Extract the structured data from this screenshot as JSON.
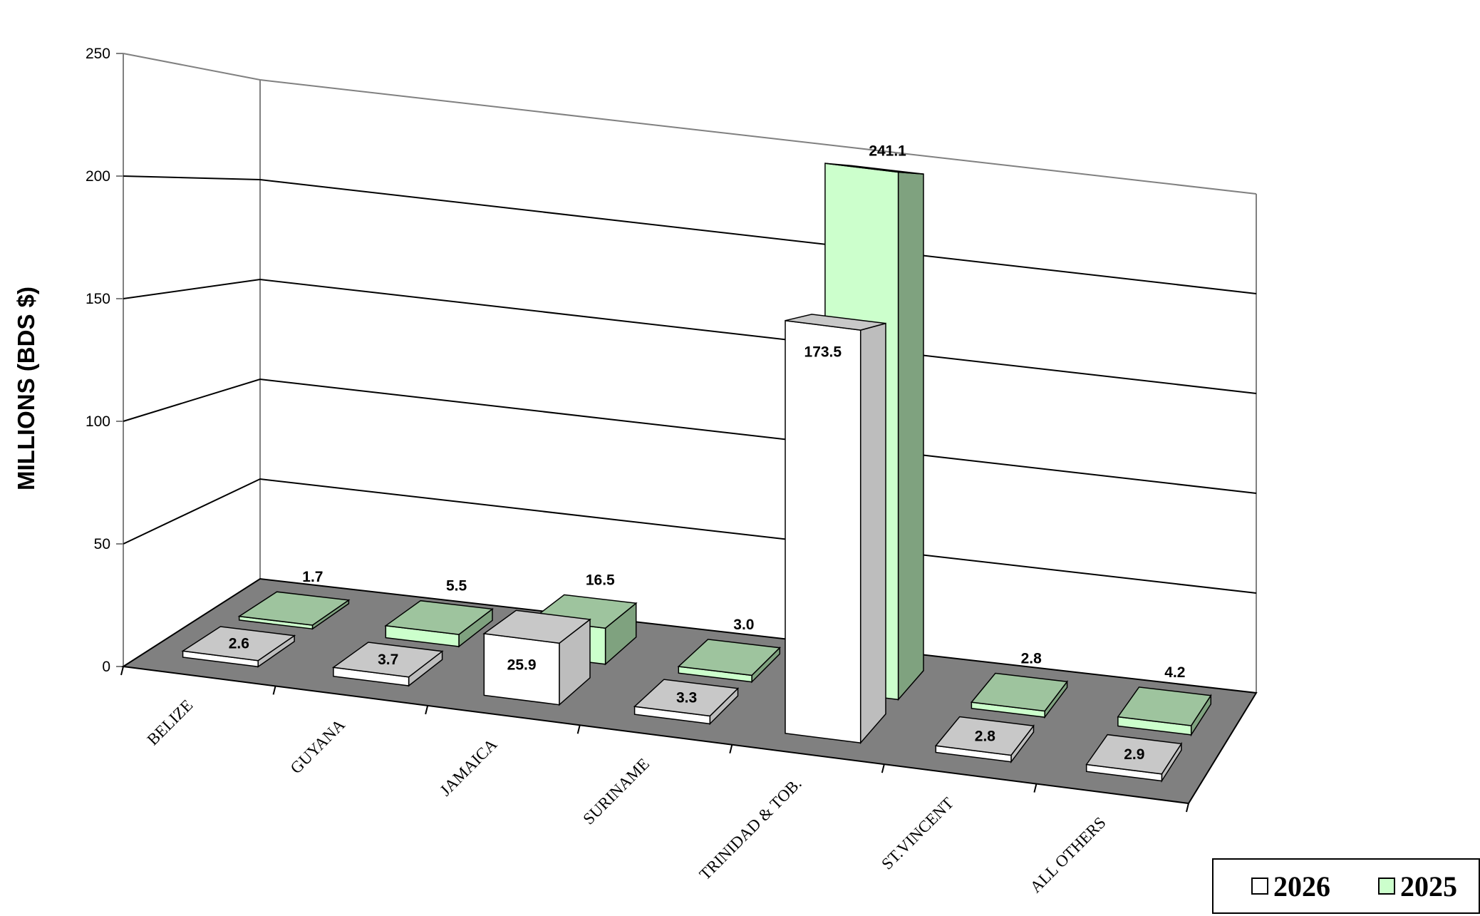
{
  "chart_data": {
    "type": "bar",
    "variant": "3d-clustered-column",
    "ylabel": "MILLIONS (BDS $)",
    "ylim": [
      0,
      250
    ],
    "yticks": [
      "0",
      "50",
      "100",
      "150",
      "200",
      "250"
    ],
    "categories": [
      "BELIZE",
      "GUYANA",
      "JAMAICA",
      "SURINAME",
      "TRINIDAD & TOB.",
      "ST.VINCENT",
      "ALL OTHERS"
    ],
    "series": [
      {
        "name": "2026",
        "color": "#ffffff",
        "side_color": "#bdbdbd",
        "values": [
          2.6,
          3.7,
          25.9,
          3.3,
          173.5,
          2.8,
          2.9
        ],
        "labels": [
          "2.6",
          "3.7",
          "25.9",
          "3.3",
          "173.5",
          "2.8",
          "2.9"
        ]
      },
      {
        "name": "2025",
        "color": "#ccffcc",
        "side_color": "#7fa27f",
        "values": [
          1.7,
          5.5,
          16.5,
          3.0,
          241.1,
          2.8,
          4.2
        ],
        "labels": [
          "1.7",
          "5.5",
          "16.5",
          "3.0",
          "241.1",
          "2.8",
          "4.2"
        ]
      }
    ],
    "grid": true,
    "legend": {
      "position": "bottom-right",
      "entries": [
        "2026",
        "2025"
      ]
    },
    "floor_color": "#808080"
  }
}
